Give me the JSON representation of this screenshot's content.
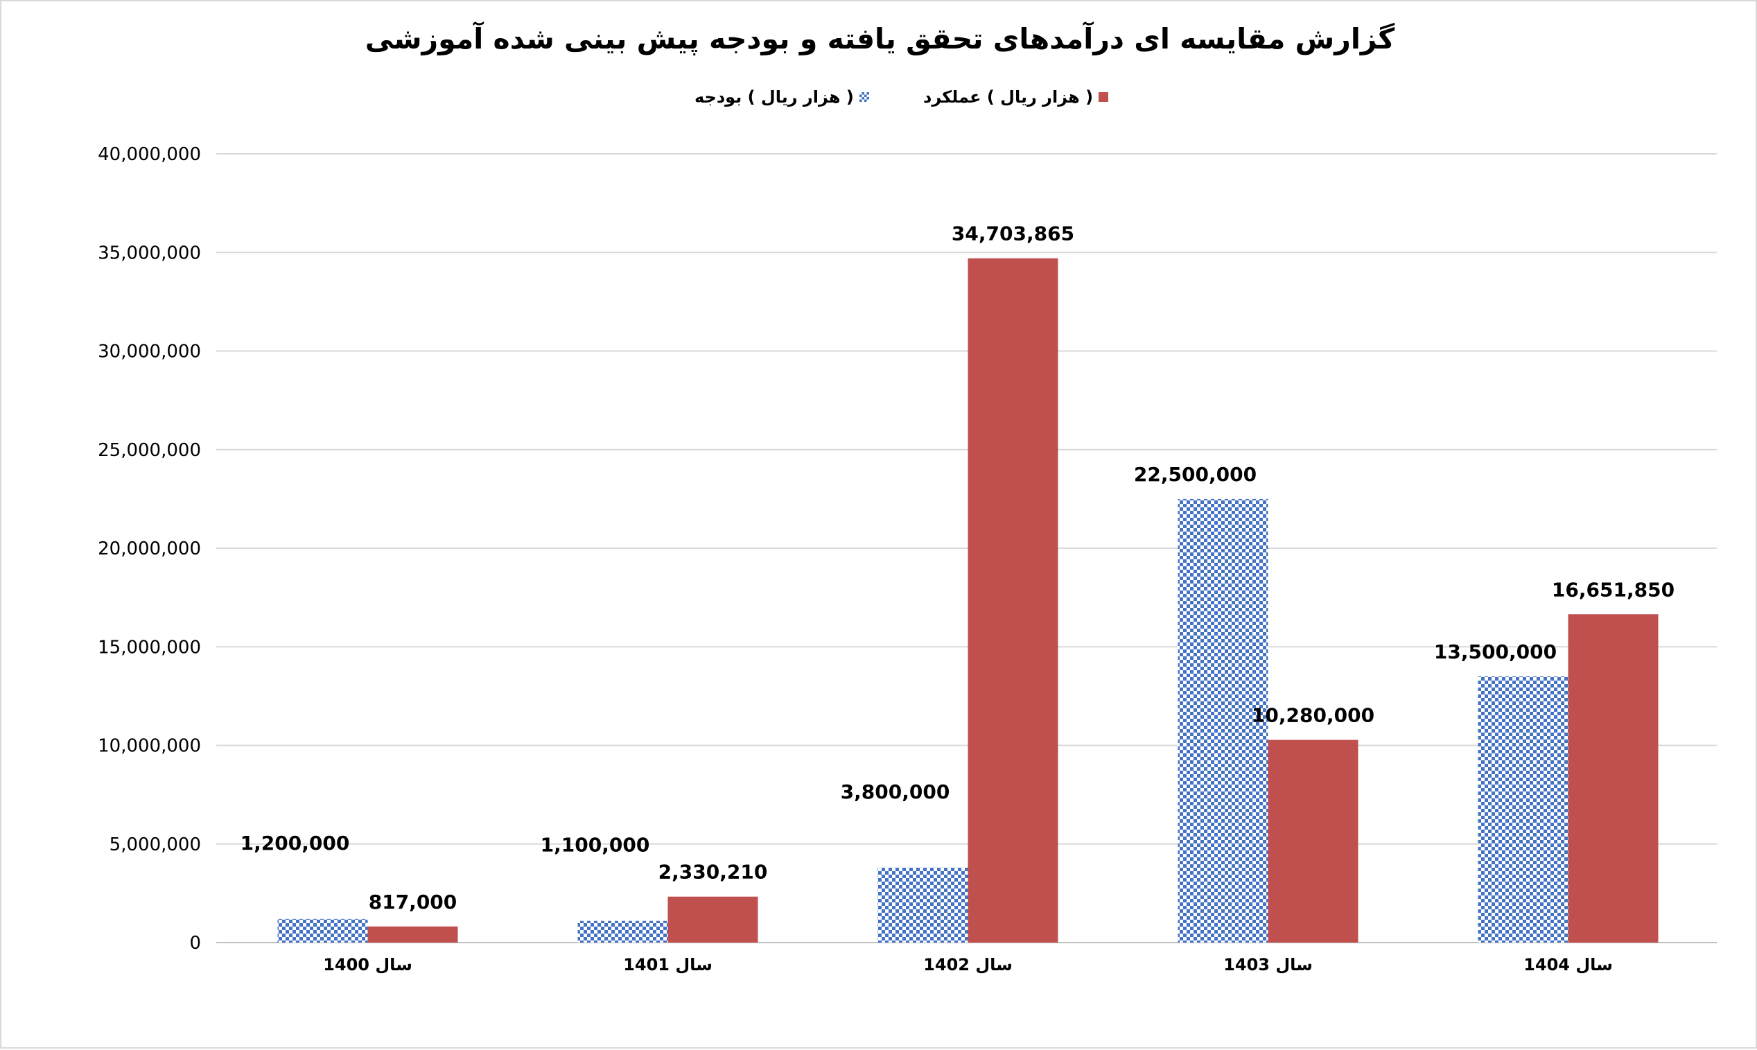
{
  "chart_data": {
    "type": "bar",
    "title": "گزارش مقایسه ای درآمدهای تحقق یافته و بودجه پیش بینی شده آموزشی",
    "categories": [
      "سال 1400",
      "سال 1401",
      "سال 1402",
      "سال 1403",
      "سال 1404"
    ],
    "series": [
      {
        "name": "( هزار ریال ) بودجه",
        "pattern": "checkerboard",
        "color": "#4472c4",
        "values": [
          1200000,
          1100000,
          3800000,
          22500000,
          13500000
        ],
        "labels": [
          "1,200,000",
          "1,100,000",
          "3,800,000",
          "22,500,000",
          "13,500,000"
        ]
      },
      {
        "name": "( هزار ریال ) عملکرد",
        "pattern": "solid",
        "color": "#c0504d",
        "values": [
          817000,
          2330210,
          34703865,
          10280000,
          16651850
        ],
        "labels": [
          "817,000",
          "2,330,210",
          "34,703,865",
          "10,280,000",
          "16,651,850"
        ]
      }
    ],
    "ylim": [
      0,
      40000000
    ],
    "yticks": [
      0,
      5000000,
      10000000,
      15000000,
      20000000,
      25000000,
      30000000,
      35000000,
      40000000
    ],
    "ytick_labels": [
      "0",
      "5,000,000",
      "10,000,000",
      "15,000,000",
      "20,000,000",
      "25,000,000",
      "30,000,000",
      "35,000,000",
      "40,000,000"
    ],
    "grid": true,
    "legend_position": "top"
  }
}
